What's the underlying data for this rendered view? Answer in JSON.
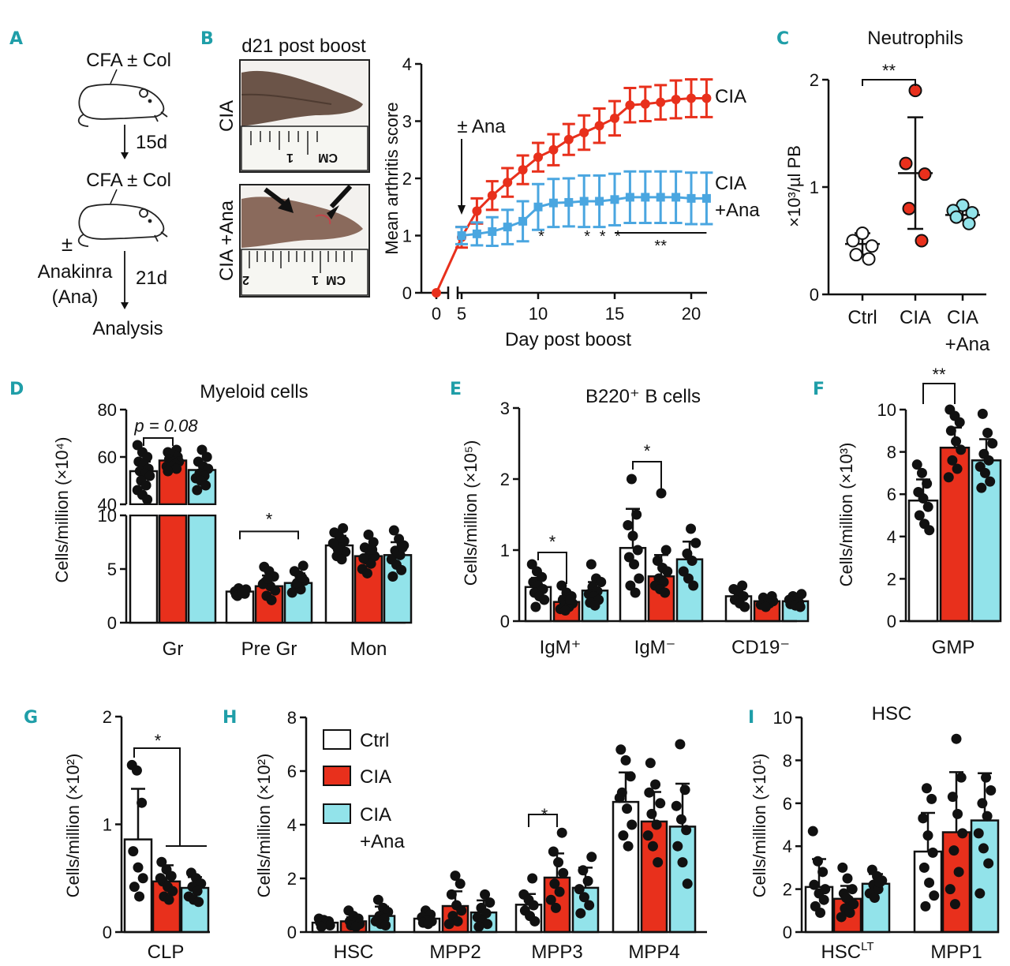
{
  "colors": {
    "ctrl": "#ffffff",
    "cia": "#e8301c",
    "cia_ana": "#92e3ea",
    "cia_ana_line": "#4aa6e0",
    "panel_label": "#1f9ea8"
  },
  "panel_labels": [
    "A",
    "B",
    "C",
    "D",
    "E",
    "F",
    "G",
    "H",
    "I"
  ],
  "panelA": {
    "step1": "CFA ± Col",
    "interval1": "15d",
    "step2": "CFA ± Col",
    "pm": "±",
    "drug1": "Anakinra",
    "drug2": "(Ana)",
    "interval2": "21d",
    "end": "Analysis"
  },
  "panelB": {
    "photo_title": "d21 post boost",
    "photo_row1": "CIA",
    "photo_row2": "CIA +Ana",
    "ruler_text": "CM",
    "ruler_num": "1",
    "ruler_num2": "2"
  },
  "legend": {
    "ctrl": "Ctrl",
    "cia": "CIA",
    "cia_ana_1": "CIA",
    "cia_ana_2": "+Ana"
  },
  "chart_data": [
    {
      "id": "B",
      "type": "line",
      "xlabel": "Day post boost",
      "ylabel": "Mean arthritis score",
      "ylim": [
        0,
        4
      ],
      "yticks": [
        0,
        1,
        2,
        3,
        4
      ],
      "xticks": [
        0,
        5,
        10,
        15,
        20
      ],
      "xlim": [
        0,
        21
      ],
      "x": [
        0,
        5,
        6,
        7,
        8,
        9,
        10,
        11,
        12,
        13,
        14,
        15,
        16,
        17,
        18,
        19,
        20,
        21
      ],
      "series": [
        {
          "name": "CIA",
          "label2": "",
          "colorKey": "cia",
          "values": [
            0,
            0.97,
            1.43,
            1.7,
            1.93,
            2.15,
            2.37,
            2.5,
            2.68,
            2.8,
            2.92,
            3.05,
            3.28,
            3.3,
            3.33,
            3.38,
            3.4,
            3.4
          ],
          "err": [
            0,
            0.18,
            0.22,
            0.25,
            0.25,
            0.25,
            0.25,
            0.27,
            0.27,
            0.3,
            0.3,
            0.3,
            0.3,
            0.3,
            0.3,
            0.33,
            0.33,
            0.33
          ]
        },
        {
          "name": "CIA",
          "label2": "+Ana",
          "colorKey": "cia_ana_line",
          "values": [
            null,
            1.0,
            1.03,
            1.07,
            1.15,
            1.25,
            1.5,
            1.57,
            1.58,
            1.6,
            1.6,
            1.63,
            1.67,
            1.67,
            1.67,
            1.67,
            1.65,
            1.65
          ],
          "err": [
            0,
            0.15,
            0.2,
            0.25,
            0.3,
            0.35,
            0.4,
            0.42,
            0.42,
            0.45,
            0.45,
            0.45,
            0.45,
            0.45,
            0.45,
            0.45,
            0.45,
            0.45
          ]
        }
      ],
      "arrow_label": "± Ana",
      "sig": [
        {
          "text": "*",
          "x": 10
        },
        {
          "text": "*",
          "x": 13
        },
        {
          "text": "*",
          "x": 14
        },
        {
          "text": "*",
          "x": 15
        },
        {
          "text": "**",
          "x_from": 15,
          "x_to": 21
        }
      ]
    },
    {
      "id": "C",
      "type": "scatter",
      "title": "Neutrophils",
      "ylabel": "×10³/µl PB",
      "ylim": [
        0,
        2
      ],
      "yticks": [
        0,
        1,
        2
      ],
      "categories": [
        "Ctrl",
        "CIA",
        "CIA +Ana"
      ],
      "cat_line1": [
        "Ctrl",
        "CIA",
        "CIA"
      ],
      "cat_line2": [
        "",
        "",
        "+Ana"
      ],
      "points": [
        [
          0.57,
          0.5,
          0.45,
          0.37,
          0.33
        ],
        [
          1.9,
          1.22,
          1.12,
          0.8,
          0.5
        ],
        [
          0.83,
          0.78,
          0.76,
          0.72,
          0.66
        ]
      ],
      "mean": [
        0.47,
        1.13,
        0.74
      ],
      "sd": [
        0.1,
        0.52,
        0.05
      ],
      "sig": [
        {
          "text": "**",
          "from": 0,
          "to": 1,
          "y": 2.0
        }
      ]
    },
    {
      "id": "D",
      "type": "bar",
      "title": "Myeloid cells",
      "ylabel": "Cells/million (×10⁴)",
      "axis_break": {
        "lower": [
          0,
          10
        ],
        "upper": [
          40,
          80
        ]
      },
      "yticks_lower": [
        0,
        5,
        10
      ],
      "yticks_upper": [
        40,
        60,
        80
      ],
      "categories": [
        "Gr",
        "Pre Gr",
        "Mon"
      ],
      "series": [
        {
          "name": "Ctrl",
          "values": [
            54,
            2.9,
            7.2
          ],
          "err": [
            4,
            0.3,
            0.9
          ]
        },
        {
          "name": "CIA",
          "values": [
            58.5,
            3.4,
            6.2
          ],
          "err": [
            2.5,
            1.0,
            1.0
          ]
        },
        {
          "name": "CIA +Ana",
          "values": [
            54.5,
            3.7,
            6.3
          ],
          "err": [
            4.5,
            0.9,
            1.2
          ]
        }
      ],
      "points": [
        [
          [
            65,
            62,
            60,
            58,
            57,
            55,
            54,
            53,
            52,
            50,
            48,
            46,
            44,
            42
          ],
          [
            3.2,
            3.0,
            2.9,
            2.8,
            2.7,
            2.6,
            2.9,
            3.1,
            2.5,
            2.8
          ],
          [
            8.8,
            8.4,
            8.0,
            7.6,
            7.2,
            7.0,
            6.6,
            6.2,
            5.9,
            7.4,
            6.8
          ]
        ],
        [
          [
            63,
            62,
            61,
            60,
            59,
            58,
            58,
            57,
            57,
            56,
            56,
            55,
            54
          ],
          [
            5.2,
            4.8,
            4.3,
            3.8,
            3.4,
            3.0,
            2.5,
            2.1,
            3.6,
            4.1
          ],
          [
            8.2,
            7.5,
            7.0,
            6.6,
            6.2,
            5.9,
            5.5,
            5.0,
            4.6,
            6.8,
            6.0
          ]
        ],
        [
          [
            63,
            60,
            58,
            56,
            55,
            53,
            52,
            51,
            50,
            48,
            46
          ],
          [
            5.3,
            4.8,
            4.4,
            3.9,
            3.5,
            3.1,
            2.8,
            3.7,
            4.2
          ],
          [
            8.6,
            7.8,
            7.2,
            6.7,
            6.3,
            5.9,
            5.4,
            4.9,
            4.3,
            6.5,
            7.0
          ]
        ]
      ],
      "sig": [
        {
          "text": "p = 0.08",
          "cat": 0,
          "from": 0,
          "to": 1,
          "y": 68
        },
        {
          "text": "*",
          "cat": 1,
          "from": 0,
          "to": 2,
          "y": 8.5
        }
      ]
    },
    {
      "id": "E",
      "type": "bar",
      "title": "B220⁺ B cells",
      "ylabel": "Cells/million (×10⁵)",
      "ylim": [
        0,
        3
      ],
      "yticks": [
        0,
        1,
        2,
        3
      ],
      "categories": [
        "IgM⁺",
        "IgM⁻",
        "CD19⁻"
      ],
      "series": [
        {
          "name": "Ctrl",
          "values": [
            0.48,
            1.03,
            0.35
          ],
          "err": [
            0.13,
            0.55,
            0.1
          ]
        },
        {
          "name": "CIA",
          "values": [
            0.27,
            0.63,
            0.28
          ],
          "err": [
            0.08,
            0.3,
            0.05
          ]
        },
        {
          "name": "CIA +Ana",
          "values": [
            0.43,
            0.87,
            0.28
          ],
          "err": [
            0.12,
            0.25,
            0.06
          ]
        }
      ],
      "points": [
        [
          [
            0.8,
            0.7,
            0.62,
            0.55,
            0.5,
            0.45,
            0.4,
            0.35,
            0.3,
            0.2
          ],
          [
            2.0,
            1.5,
            1.35,
            1.2,
            1.0,
            0.9,
            0.8,
            0.6,
            0.5,
            0.4
          ],
          [
            0.5,
            0.45,
            0.4,
            0.35,
            0.3,
            0.25,
            0.2
          ]
        ],
        [
          [
            0.5,
            0.4,
            0.35,
            0.3,
            0.27,
            0.25,
            0.22,
            0.2,
            0.17,
            0.15,
            0.3
          ],
          [
            1.8,
            1.0,
            0.85,
            0.75,
            0.7,
            0.6,
            0.55,
            0.5,
            0.45,
            0.4
          ],
          [
            0.35,
            0.33,
            0.3,
            0.28,
            0.27,
            0.25,
            0.23,
            0.2
          ]
        ],
        [
          [
            0.8,
            0.6,
            0.55,
            0.48,
            0.42,
            0.38,
            0.35,
            0.3,
            0.26,
            0.22
          ],
          [
            1.3,
            1.1,
            0.95,
            0.85,
            0.7,
            0.6,
            0.5
          ],
          [
            0.38,
            0.35,
            0.32,
            0.3,
            0.28,
            0.26,
            0.24,
            0.22,
            0.2
          ]
        ]
      ],
      "sig": [
        {
          "text": "*",
          "cat": 0,
          "from": 0,
          "to": 1,
          "y": 1.1
        },
        {
          "text": "*",
          "cat": 1,
          "from": 0,
          "to": 1,
          "y": 2.2
        }
      ]
    },
    {
      "id": "F",
      "type": "bar",
      "title": "",
      "ylabel": "Cells/million (×10³)",
      "ylim": [
        0,
        10
      ],
      "yticks": [
        0,
        2,
        4,
        6,
        8,
        10
      ],
      "categories": [
        "GMP"
      ],
      "series": [
        {
          "name": "Ctrl",
          "values": [
            5.7
          ],
          "err": [
            1.0
          ]
        },
        {
          "name": "CIA",
          "values": [
            8.2
          ],
          "err": [
            0.95
          ]
        },
        {
          "name": "CIA +Ana",
          "values": [
            7.6
          ],
          "err": [
            1.0
          ]
        }
      ],
      "points": [
        [
          [
            7.4,
            7.0,
            6.5,
            6.1,
            5.8,
            5.4,
            5.0,
            4.6,
            4.3
          ]
        ],
        [
          [
            10.0,
            9.7,
            9.4,
            9.0,
            8.5,
            8.1,
            7.6,
            7.2,
            6.8
          ]
        ],
        [
          [
            9.8,
            8.9,
            8.4,
            7.9,
            7.6,
            7.3,
            7.0,
            6.6,
            6.3
          ]
        ]
      ],
      "sig": [
        {
          "text": "**",
          "cat": 0,
          "from": 0,
          "to": 1,
          "y": 11.2
        }
      ]
    },
    {
      "id": "G",
      "type": "bar",
      "title": "",
      "ylabel": "Cells/million (×10²)",
      "ylim": [
        0,
        2
      ],
      "yticks": [
        0,
        1,
        2
      ],
      "categories": [
        "CLP"
      ],
      "series": [
        {
          "name": "Ctrl",
          "values": [
            0.86
          ],
          "err": [
            0.47
          ]
        },
        {
          "name": "CIA",
          "values": [
            0.47
          ],
          "err": [
            0.15
          ]
        },
        {
          "name": "CIA +Ana",
          "values": [
            0.41
          ],
          "err": [
            0.1
          ]
        }
      ],
      "points": [
        [
          [
            1.55,
            1.5,
            1.2,
            0.75,
            0.6,
            0.5,
            0.42,
            0.33
          ]
        ],
        [
          [
            0.65,
            0.58,
            0.52,
            0.47,
            0.42,
            0.38,
            0.33,
            0.3,
            0.5
          ]
        ],
        [
          [
            0.55,
            0.5,
            0.45,
            0.42,
            0.38,
            0.33,
            0.3,
            0.28
          ]
        ]
      ],
      "sig": [
        {
          "text": "*",
          "cat": 0,
          "from": 0,
          "to": 2,
          "y": 1.7
        }
      ]
    },
    {
      "id": "H",
      "type": "bar",
      "title": "",
      "ylabel": "Cells/million (×10²)",
      "ylim": [
        0,
        8
      ],
      "yticks": [
        0,
        2,
        4,
        6,
        8
      ],
      "categories": [
        "HSC",
        "MPP2",
        "MPP3",
        "MPP4"
      ],
      "series": [
        {
          "name": "Ctrl",
          "values": [
            0.35,
            0.5,
            1.02,
            4.85
          ],
          "err": [
            0.08,
            0.1,
            0.4,
            1.1
          ]
        },
        {
          "name": "CIA",
          "values": [
            0.4,
            0.97,
            2.03,
            4.12
          ],
          "err": [
            0.15,
            0.55,
            0.9,
            1.1
          ]
        },
        {
          "name": "CIA +Ana",
          "values": [
            0.6,
            0.73,
            1.65,
            3.93
          ],
          "err": [
            0.35,
            0.45,
            0.75,
            1.6
          ]
        }
      ],
      "points": [
        [
          [
            0.5,
            0.45,
            0.4,
            0.35,
            0.3,
            0.25,
            0.2
          ],
          [
            0.8,
            0.65,
            0.55,
            0.45,
            0.4,
            0.35,
            0.3
          ],
          [
            2.0,
            1.4,
            1.2,
            1.0,
            0.8,
            0.6,
            0.4
          ],
          [
            6.8,
            6.4,
            5.8,
            5.2,
            4.6,
            4.0,
            3.6,
            3.2,
            5.0
          ]
        ],
        [
          [
            0.8,
            0.6,
            0.5,
            0.4,
            0.35,
            0.3,
            0.25,
            0.2
          ],
          [
            2.1,
            1.8,
            1.4,
            1.0,
            0.8,
            0.6,
            0.4,
            0.3
          ],
          [
            3.7,
            3.0,
            2.6,
            2.2,
            1.8,
            1.5,
            1.2,
            0.9
          ],
          [
            6.3,
            5.5,
            4.8,
            4.4,
            4.0,
            3.6,
            3.2,
            2.6,
            5.2
          ]
        ],
        [
          [
            1.2,
            0.9,
            0.75,
            0.6,
            0.5,
            0.4,
            0.3,
            0.25
          ],
          [
            1.4,
            1.1,
            0.9,
            0.7,
            0.55,
            0.4,
            0.3,
            0.2
          ],
          [
            2.8,
            2.3,
            1.9,
            1.6,
            1.3,
            1.0,
            0.7
          ],
          [
            7.0,
            5.3,
            4.7,
            4.2,
            3.8,
            3.2,
            2.6,
            1.8
          ]
        ]
      ],
      "sig": [
        {
          "text": "*",
          "cat": 2,
          "from": 0,
          "to": 1,
          "y": 4.1
        }
      ]
    },
    {
      "id": "I",
      "type": "bar",
      "title": "HSC",
      "ylabel": "Cells/million (×10¹)",
      "ylim": [
        0,
        10
      ],
      "yticks": [
        0,
        2,
        4,
        6,
        8,
        10
      ],
      "categories": [
        "HSCLT",
        "MPP1"
      ],
      "cat_main": [
        "HSC",
        "MPP1"
      ],
      "cat_sup": [
        "LT",
        ""
      ],
      "series": [
        {
          "name": "Ctrl",
          "values": [
            2.1,
            3.75
          ],
          "err": [
            1.3,
            1.8
          ]
        },
        {
          "name": "CIA",
          "values": [
            1.55,
            4.65
          ],
          "err": [
            0.6,
            2.8
          ]
        },
        {
          "name": "CIA +Ana",
          "values": [
            2.25,
            5.2
          ],
          "err": [
            0.45,
            2.2
          ]
        }
      ],
      "points": [
        [
          [
            4.7,
            3.3,
            2.8,
            2.2,
            1.8,
            1.5,
            1.2,
            0.9,
            2.0
          ],
          [
            6.7,
            6.2,
            5.3,
            4.5,
            3.7,
            3.0,
            2.3,
            1.7,
            1.2
          ]
        ],
        [
          [
            3.0,
            2.5,
            2.0,
            1.8,
            1.5,
            1.3,
            1.1,
            0.9,
            0.7,
            1.6
          ],
          [
            9.0,
            7.2,
            6.3,
            5.5,
            4.6,
            3.8,
            2.8,
            2.0,
            1.3
          ]
        ],
        [
          [
            2.9,
            2.6,
            2.4,
            2.2,
            2.0,
            1.8,
            1.6,
            2.3
          ],
          [
            7.2,
            6.6,
            6.0,
            5.4,
            4.6,
            3.9,
            3.2,
            1.8
          ]
        ]
      ],
      "sig": []
    }
  ]
}
